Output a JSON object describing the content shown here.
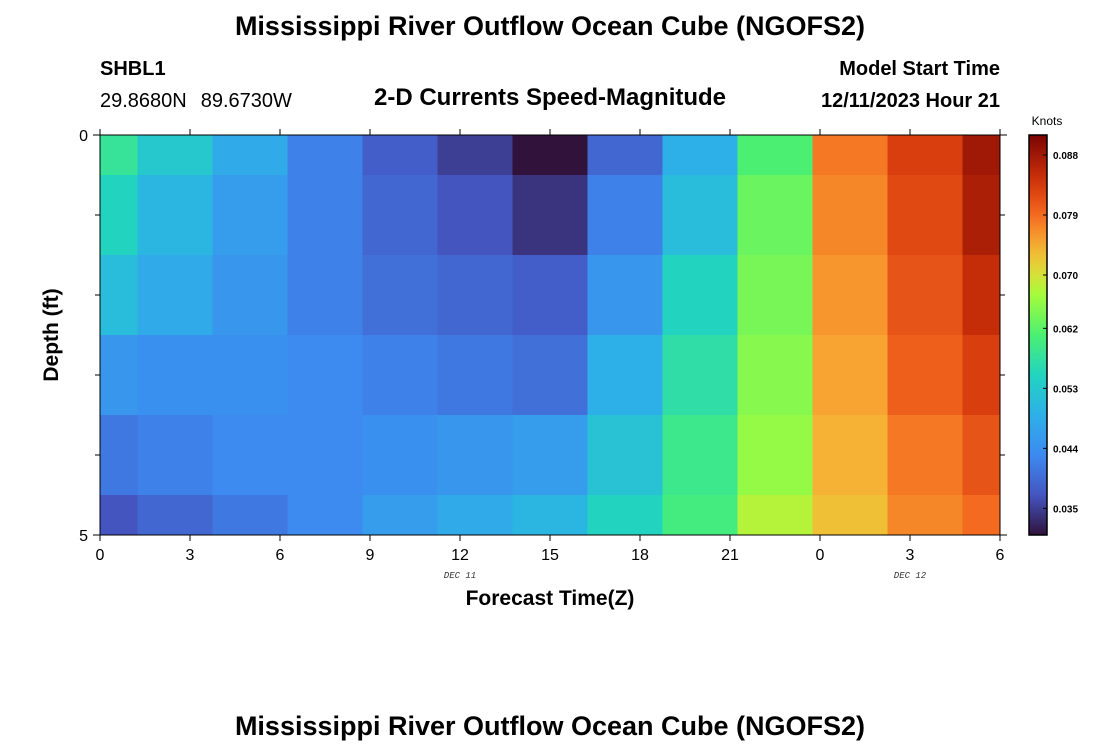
{
  "title": "Mississippi River Outflow Ocean Cube (NGOFS2)",
  "title_repeat": "Mississippi River Outflow Ocean Cube (NGOFS2)",
  "station": {
    "name": "SHBL1",
    "lat": "29.8680N",
    "lon": "89.6730W"
  },
  "model_start": {
    "label": "Model Start Time",
    "value": "12/11/2023 Hour 21"
  },
  "chart_data": {
    "type": "heatmap",
    "title": "2-D Currents Speed-Magnitude",
    "xlabel": "Forecast Time(Z)",
    "ylabel": "Depth (ft)",
    "x_tick_labels": [
      "0",
      "3",
      "6",
      "9",
      "12",
      "15",
      "18",
      "21",
      "0",
      "3",
      "6"
    ],
    "date_labels": [
      {
        "text": "DEC 11",
        "at_tick": 4
      },
      {
        "text": "DEC 12",
        "at_tick": 9
      }
    ],
    "y_tick_labels": [
      "0",
      "5"
    ],
    "ylim": [
      0,
      5
    ],
    "colorbar": {
      "unit": "Knots",
      "min": 0.031,
      "max": 0.091,
      "ticks": [
        "0.035",
        "0.044",
        "0.053",
        "0.062",
        "0.070",
        "0.079",
        "0.088"
      ],
      "tick_values": [
        0.035,
        0.044,
        0.053,
        0.062,
        0.07,
        0.079,
        0.088
      ]
    },
    "column_bounds_hours": [
      0,
      1.25,
      3.75,
      6.25,
      8.75,
      11.25,
      13.75,
      16.25,
      18.75,
      21.25,
      23.75,
      26.25,
      28.75,
      30
    ],
    "row_bounds_ft": [
      0,
      0.5,
      1.5,
      2.5,
      3.5,
      4.5,
      5
    ],
    "values": [
      [
        0.058,
        0.053,
        0.048,
        0.042,
        0.038,
        0.035,
        0.031,
        0.039,
        0.049,
        0.061,
        0.078,
        0.083,
        0.088
      ],
      [
        0.055,
        0.05,
        0.046,
        0.042,
        0.039,
        0.037,
        0.034,
        0.042,
        0.051,
        0.063,
        0.077,
        0.082,
        0.087
      ],
      [
        0.051,
        0.048,
        0.045,
        0.042,
        0.04,
        0.039,
        0.038,
        0.045,
        0.055,
        0.064,
        0.076,
        0.081,
        0.085
      ],
      [
        0.045,
        0.044,
        0.044,
        0.043,
        0.042,
        0.041,
        0.04,
        0.049,
        0.057,
        0.065,
        0.075,
        0.08,
        0.083
      ],
      [
        0.041,
        0.042,
        0.043,
        0.043,
        0.044,
        0.045,
        0.046,
        0.052,
        0.059,
        0.066,
        0.074,
        0.078,
        0.081
      ],
      [
        0.037,
        0.039,
        0.041,
        0.043,
        0.046,
        0.048,
        0.05,
        0.055,
        0.06,
        0.068,
        0.073,
        0.077,
        0.079
      ]
    ]
  }
}
